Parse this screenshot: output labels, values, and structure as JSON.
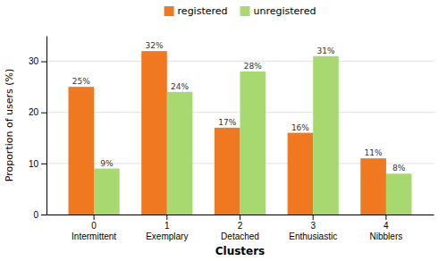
{
  "chart_data": {
    "type": "bar",
    "categories": [
      "0\nIntermittent",
      "1\nExemplary",
      "2\nDetached",
      "3\nEnthusiastic",
      "4\nNibblers"
    ],
    "series": [
      {
        "name": "registered",
        "color": "#F07820",
        "values": [
          25,
          32,
          17,
          16,
          11
        ],
        "value_labels": [
          "25%",
          "32%",
          "17%",
          "16%",
          "11%"
        ]
      },
      {
        "name": "unregistered",
        "color": "#A8D870",
        "values": [
          9,
          24,
          28,
          31,
          8
        ],
        "value_labels": [
          "9%",
          "24%",
          "28%",
          "31%",
          "8%"
        ]
      }
    ],
    "xlabel": "Clusters",
    "ylabel": "Proportion of users (%)",
    "ylim": [
      0,
      35
    ],
    "yticks": [
      0,
      10,
      20,
      30
    ],
    "grid": true,
    "legend": "top",
    "data_labels": true
  }
}
